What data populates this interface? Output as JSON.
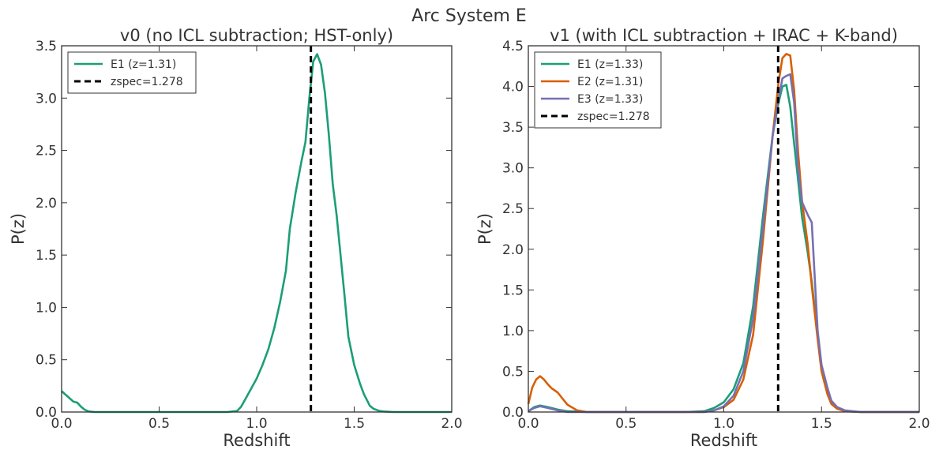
{
  "suptitle": "Arc System E",
  "chart_data": [
    {
      "type": "line",
      "title": "v0 (no ICL subtraction; HST-only)",
      "xlabel": "Redshift",
      "ylabel": "P(z)",
      "xlim": [
        0.0,
        2.0
      ],
      "ylim": [
        0.0,
        3.5
      ],
      "xticks": [
        "0.0",
        "0.5",
        "1.0",
        "1.5",
        "2.0"
      ],
      "yticks": [
        "0.0",
        "0.5",
        "1.0",
        "1.5",
        "2.0",
        "2.5",
        "3.0",
        "3.5"
      ],
      "legend_position": "top-left",
      "series": [
        {
          "name": "E1 (z=1.31)",
          "color": "#1b9e77",
          "x": [
            0.0,
            0.03,
            0.06,
            0.08,
            0.1,
            0.12,
            0.14,
            0.17,
            0.2,
            0.3,
            0.5,
            0.7,
            0.85,
            0.9,
            0.92,
            0.95,
            1.0,
            1.03,
            1.06,
            1.09,
            1.12,
            1.15,
            1.17,
            1.2,
            1.23,
            1.25,
            1.27,
            1.29,
            1.31,
            1.33,
            1.35,
            1.37,
            1.39,
            1.41,
            1.43,
            1.45,
            1.47,
            1.5,
            1.53,
            1.55,
            1.58,
            1.6,
            1.63,
            1.65,
            1.7,
            1.8,
            2.0
          ],
          "y": [
            0.2,
            0.15,
            0.1,
            0.09,
            0.05,
            0.02,
            0.005,
            0.0,
            0.0,
            0.0,
            0.0,
            0.0,
            0.0,
            0.01,
            0.05,
            0.15,
            0.32,
            0.45,
            0.6,
            0.8,
            1.05,
            1.35,
            1.75,
            2.1,
            2.4,
            2.58,
            3.0,
            3.35,
            3.42,
            3.32,
            3.05,
            2.65,
            2.18,
            1.88,
            1.5,
            1.12,
            0.72,
            0.45,
            0.27,
            0.17,
            0.06,
            0.03,
            0.01,
            0.005,
            0.0,
            0.0,
            0.0
          ]
        },
        {
          "name": "zspec=1.278",
          "color": "#000000",
          "style": "dashed",
          "vline_x": 1.278
        }
      ]
    },
    {
      "type": "line",
      "title": "v1 (with ICL subtraction + IRAC + K-band)",
      "xlabel": "Redshift",
      "ylabel": "P(z)",
      "xlim": [
        0.0,
        2.0
      ],
      "ylim": [
        0.0,
        4.5
      ],
      "xticks": [
        "0.0",
        "0.5",
        "1.0",
        "1.5",
        "2.0"
      ],
      "yticks": [
        "0.0",
        "0.5",
        "1.0",
        "1.5",
        "2.0",
        "2.5",
        "3.0",
        "3.5",
        "4.0",
        "4.5"
      ],
      "legend_position": "top-left",
      "series": [
        {
          "name": "E1 (z=1.33)",
          "color": "#1b9e77",
          "x": [
            0.0,
            0.03,
            0.06,
            0.1,
            0.15,
            0.2,
            0.3,
            0.5,
            0.8,
            0.9,
            0.95,
            1.0,
            1.05,
            1.1,
            1.15,
            1.2,
            1.25,
            1.28,
            1.3,
            1.32,
            1.34,
            1.36,
            1.38,
            1.4,
            1.43,
            1.45,
            1.48,
            1.5,
            1.53,
            1.55,
            1.58,
            1.62,
            1.7,
            2.0
          ],
          "y": [
            0.01,
            0.06,
            0.08,
            0.06,
            0.03,
            0.01,
            0.0,
            0.0,
            0.0,
            0.01,
            0.05,
            0.12,
            0.28,
            0.6,
            1.3,
            2.4,
            3.4,
            3.8,
            4.0,
            4.02,
            3.75,
            3.3,
            2.85,
            2.4,
            1.95,
            1.6,
            0.95,
            0.55,
            0.25,
            0.12,
            0.05,
            0.01,
            0.0,
            0.0
          ]
        },
        {
          "name": "E2 (z=1.31)",
          "color": "#d95f02",
          "x": [
            0.0,
            0.02,
            0.04,
            0.06,
            0.08,
            0.1,
            0.12,
            0.15,
            0.18,
            0.2,
            0.25,
            0.3,
            0.5,
            0.8,
            0.9,
            0.95,
            1.0,
            1.05,
            1.1,
            1.15,
            1.2,
            1.25,
            1.28,
            1.3,
            1.32,
            1.34,
            1.36,
            1.38,
            1.4,
            1.43,
            1.45,
            1.48,
            1.5,
            1.53,
            1.55,
            1.58,
            1.62,
            1.7,
            2.0
          ],
          "y": [
            0.1,
            0.3,
            0.4,
            0.44,
            0.4,
            0.34,
            0.29,
            0.24,
            0.15,
            0.09,
            0.02,
            0.0,
            0.0,
            0.0,
            0.0,
            0.02,
            0.06,
            0.15,
            0.4,
            0.95,
            2.1,
            3.4,
            4.05,
            4.35,
            4.4,
            4.38,
            3.95,
            3.2,
            2.6,
            2.05,
            1.55,
            0.9,
            0.5,
            0.22,
            0.1,
            0.04,
            0.01,
            0.0,
            0.0
          ]
        },
        {
          "name": "E3 (z=1.33)",
          "color": "#7570b3",
          "x": [
            0.0,
            0.03,
            0.06,
            0.1,
            0.15,
            0.2,
            0.3,
            0.5,
            0.8,
            0.9,
            0.95,
            1.0,
            1.05,
            1.1,
            1.15,
            1.2,
            1.25,
            1.28,
            1.3,
            1.32,
            1.34,
            1.36,
            1.38,
            1.4,
            1.43,
            1.45,
            1.48,
            1.5,
            1.53,
            1.55,
            1.58,
            1.62,
            1.7,
            2.0
          ],
          "y": [
            0.01,
            0.05,
            0.07,
            0.05,
            0.02,
            0.0,
            0.0,
            0.0,
            0.0,
            0.0,
            0.02,
            0.07,
            0.2,
            0.5,
            1.15,
            2.25,
            3.4,
            3.85,
            4.1,
            4.13,
            4.15,
            3.8,
            3.0,
            2.58,
            2.42,
            2.33,
            1.0,
            0.58,
            0.3,
            0.14,
            0.06,
            0.02,
            0.0,
            0.0
          ]
        },
        {
          "name": "zspec=1.278",
          "color": "#000000",
          "style": "dashed",
          "vline_x": 1.278
        }
      ]
    }
  ]
}
